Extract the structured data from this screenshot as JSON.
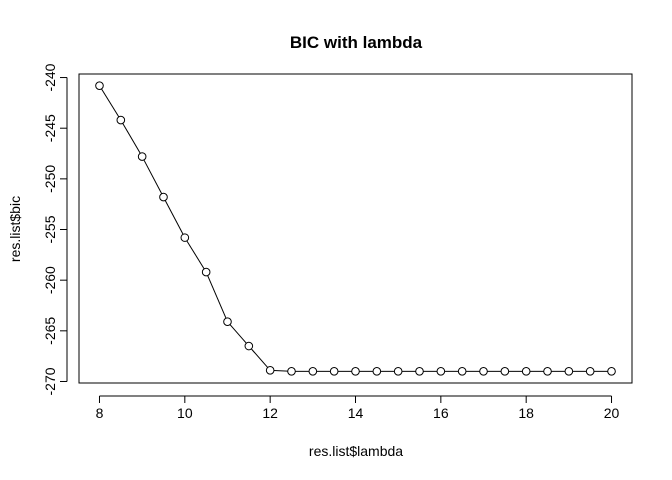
{
  "chart_data": {
    "type": "line",
    "title": "BIC with lambda",
    "xlabel": "res.list$lambda",
    "ylabel": "res.list$bic",
    "x": [
      8,
      8.5,
      9,
      9.5,
      10,
      10.5,
      11,
      11.5,
      12,
      12.5,
      13,
      13.5,
      14,
      14.5,
      15,
      15.5,
      16,
      16.5,
      17,
      17.5,
      18,
      18.5,
      19,
      19.5,
      20
    ],
    "series": [
      {
        "values": [
          -240.8,
          -244.2,
          -247.8,
          -251.8,
          -255.8,
          -259.2,
          -264.1,
          -266.5,
          -268.9,
          -269.0,
          -269.0,
          -269.0,
          -269.0,
          -269.0,
          -269.0,
          -269.0,
          -269.0,
          -269.0,
          -269.0,
          -269.0,
          -269.0,
          -269.0,
          -269.0,
          -269.0,
          -269.0
        ],
        "marker": "open-circle",
        "line_color": "#000000"
      }
    ],
    "xlim": [
      7.52,
      20.48
    ],
    "ylim": [
      -270.15,
      -239.65
    ],
    "xticks": [
      8,
      10,
      12,
      14,
      16,
      18,
      20
    ],
    "yticks": [
      -240,
      -245,
      -250,
      -255,
      -260,
      -265,
      -270
    ],
    "grid": false,
    "legend": "none"
  }
}
